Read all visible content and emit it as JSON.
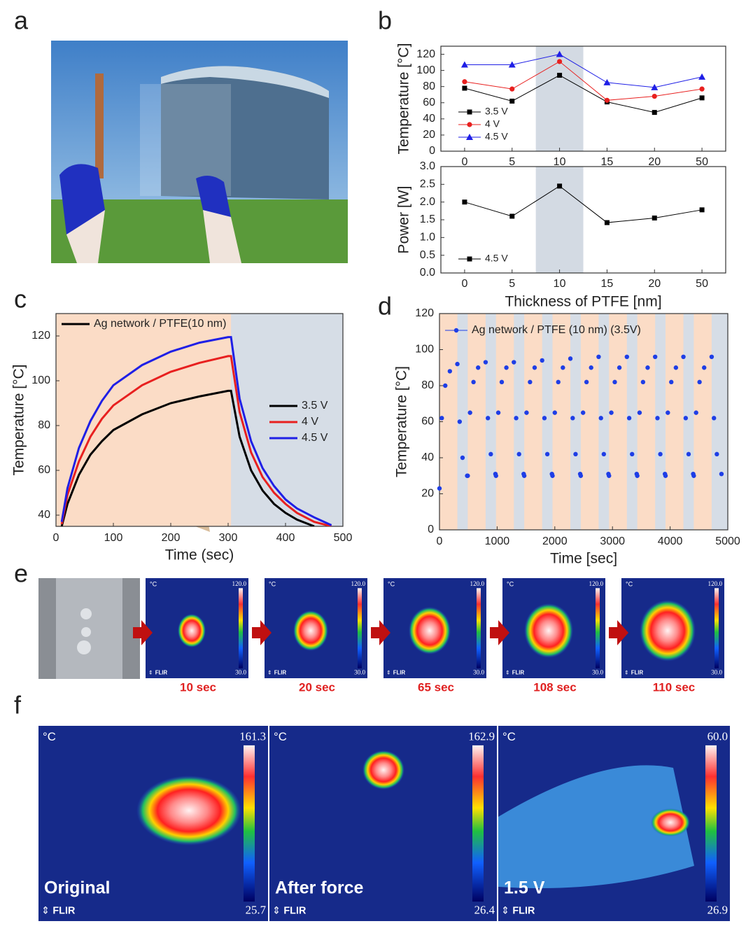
{
  "panel_labels": [
    "a",
    "b",
    "c",
    "d",
    "e",
    "f"
  ],
  "chart_data": [
    {
      "type": "line",
      "y_label": "Temperature [°C]",
      "categories": [
        "0",
        "5",
        "10",
        "15",
        "20",
        "50"
      ],
      "series": [
        {
          "name": "3.5 V",
          "color": "#000000",
          "marker": "square",
          "values": [
            78,
            62,
            94,
            61,
            48,
            66
          ]
        },
        {
          "name": "4 V",
          "color": "#e8201f",
          "marker": "circle",
          "values": [
            86,
            77,
            111,
            63,
            68,
            77
          ]
        },
        {
          "name": "4.5 V",
          "color": "#1f1fe6",
          "marker": "triangle",
          "values": [
            107,
            107,
            120,
            85,
            79,
            92
          ]
        }
      ],
      "ylim": [
        0,
        130
      ],
      "yticks": [
        0,
        20,
        40,
        60,
        80,
        100,
        120
      ],
      "highlight": "10",
      "highlight_color": "#d3dae3",
      "legend": "lower-left"
    },
    {
      "type": "line",
      "y_label": "Power [W]",
      "x_label": "Thickness of PTFE [nm]",
      "categories": [
        "0",
        "5",
        "10",
        "15",
        "20",
        "50"
      ],
      "series": [
        {
          "name": "4.5 V",
          "color": "#000000",
          "marker": "square",
          "values": [
            2.0,
            1.6,
            2.45,
            1.42,
            1.55,
            1.78
          ]
        }
      ],
      "ylim": [
        0,
        3.0
      ],
      "yticks": [
        {
          "value": 0,
          "label": "0.0"
        },
        {
          "value": 0.5,
          "label": "0.5"
        },
        {
          "value": 1,
          "label": "1.0"
        },
        {
          "value": 1.5,
          "label": "1.5"
        },
        {
          "value": 2,
          "label": "2.0"
        },
        {
          "value": 2.5,
          "label": "2.5"
        },
        {
          "value": 3,
          "label": "3.0"
        }
      ],
      "highlight": "10",
      "highlight_color": "#d3dae3",
      "legend": "lower-left"
    },
    {
      "type": "line",
      "x_label": "Time (sec)",
      "y_label": "Temperature [°C]",
      "annotation": "Ag network / PTFE(10 nm)",
      "x": [
        10,
        20,
        40,
        60,
        80,
        100,
        150,
        200,
        250,
        300,
        305,
        320,
        340,
        360,
        380,
        400,
        420,
        450,
        480
      ],
      "series": [
        {
          "name": "3.5 V",
          "color": "#000000",
          "values": [
            35,
            45,
            58,
            67,
            73,
            78,
            85,
            90,
            93,
            95.5,
            95.5,
            75,
            60,
            51,
            45,
            41,
            38,
            35,
            null
          ]
        },
        {
          "name": "4 V",
          "color": "#e8201f",
          "values": [
            36,
            49,
            64,
            75,
            83,
            89,
            98,
            104,
            108,
            111,
            111,
            86,
            68,
            57,
            50,
            45,
            41,
            37,
            35
          ]
        },
        {
          "name": "4.5 V",
          "color": "#1f1fe6",
          "values": [
            37,
            52,
            70,
            82,
            91,
            98,
            107,
            113,
            117,
            119.5,
            119.5,
            92,
            73,
            61,
            53,
            47,
            43,
            39,
            35.5
          ]
        }
      ],
      "xlim": [
        0,
        500
      ],
      "ylim": [
        35,
        130
      ],
      "xticks": [
        0,
        100,
        200,
        300,
        400,
        500
      ],
      "yticks": [
        40,
        60,
        80,
        100,
        120
      ],
      "background_color": "#d6dde6",
      "heating_color": "#fbdcc6",
      "heating_intervals": [
        [
          0,
          305
        ]
      ],
      "legend": "center-right"
    },
    {
      "type": "scatter",
      "x_label": "Time [sec]",
      "y_label": "Temperature [°C]",
      "x": [
        0,
        40,
        100,
        180,
        310,
        350,
        400,
        480,
        490,
        530,
        590,
        670,
        800,
        840,
        890,
        970,
        980,
        1020,
        1080,
        1160,
        1290,
        1330,
        1380,
        1460,
        1470,
        1510,
        1570,
        1650,
        1780,
        1820,
        1870,
        1950,
        1960,
        2000,
        2060,
        2140,
        2270,
        2310,
        2360,
        2440,
        2450,
        2490,
        2550,
        2630,
        2760,
        2800,
        2850,
        2930,
        2940,
        2980,
        3040,
        3120,
        3250,
        3290,
        3340,
        3420,
        3430,
        3470,
        3530,
        3610,
        3740,
        3780,
        3830,
        3910,
        3920,
        3960,
        4020,
        4100,
        4230,
        4270,
        4320,
        4400,
        4410,
        4450,
        4510,
        4590,
        4720,
        4760,
        4810,
        4890
      ],
      "series": [
        {
          "name": "Ag network / PTFE (10 nm) (3.5V)",
          "color": "#1e3ee6",
          "values": [
            23,
            62,
            80,
            88,
            92,
            60,
            40,
            30,
            30,
            65,
            82,
            90,
            93,
            62,
            42,
            31,
            30,
            65,
            82,
            90,
            93,
            62,
            42,
            31,
            30,
            65,
            82,
            90,
            94,
            62,
            42,
            31,
            30,
            65,
            82,
            90,
            95,
            62,
            42,
            31,
            30,
            65,
            82,
            90,
            96,
            62,
            42,
            31,
            30,
            65,
            82,
            90,
            96,
            62,
            42,
            31,
            30,
            65,
            82,
            90,
            96,
            62,
            42,
            31,
            30,
            65,
            82,
            90,
            96,
            62,
            42,
            31,
            30,
            65,
            82,
            90,
            96,
            62,
            42,
            31
          ]
        }
      ],
      "xlim": [
        0,
        5000
      ],
      "ylim": [
        0,
        120
      ],
      "xticks": [
        0,
        1000,
        2000,
        3000,
        4000,
        5000
      ],
      "yticks": [
        0,
        20,
        40,
        60,
        80,
        100,
        120
      ],
      "background_color": "#d6dde6",
      "heating_color": "#fbdcc6",
      "heating_intervals": [
        [
          0,
          310
        ],
        [
          490,
          800
        ],
        [
          980,
          1290
        ],
        [
          1470,
          1780
        ],
        [
          1960,
          2270
        ],
        [
          2450,
          2760
        ],
        [
          2940,
          3250
        ],
        [
          3430,
          3740
        ],
        [
          3920,
          4230
        ],
        [
          4410,
          4720
        ]
      ],
      "legend": "upper-left"
    }
  ],
  "thermal_sequence": [
    {
      "unit": "°C",
      "max": "120.0",
      "min": "30.0",
      "brand": "FLIR",
      "caption": "10 sec"
    },
    {
      "unit": "°C",
      "max": "120.0",
      "min": "30.0",
      "brand": "FLIR",
      "caption": "20 sec"
    },
    {
      "unit": "°C",
      "max": "120.0",
      "min": "30.0",
      "brand": "FLIR",
      "caption": "65 sec"
    },
    {
      "unit": "°C",
      "max": "120.0",
      "min": "30.0",
      "brand": "FLIR",
      "caption": "108 sec"
    },
    {
      "unit": "°C",
      "max": "120.0",
      "min": "30.0",
      "brand": "FLIR",
      "caption": "110 sec"
    }
  ],
  "thermal_images": [
    {
      "unit": "°C",
      "max": "161.3",
      "min": "25.7",
      "brand": "FLIR",
      "caption": "Original"
    },
    {
      "unit": "°C",
      "max": "162.9",
      "min": "26.4",
      "brand": "FLIR",
      "caption": "After force"
    },
    {
      "unit": "°C",
      "max": "60.0",
      "min": "26.9",
      "brand": "FLIR",
      "caption": "1.5 V"
    }
  ]
}
